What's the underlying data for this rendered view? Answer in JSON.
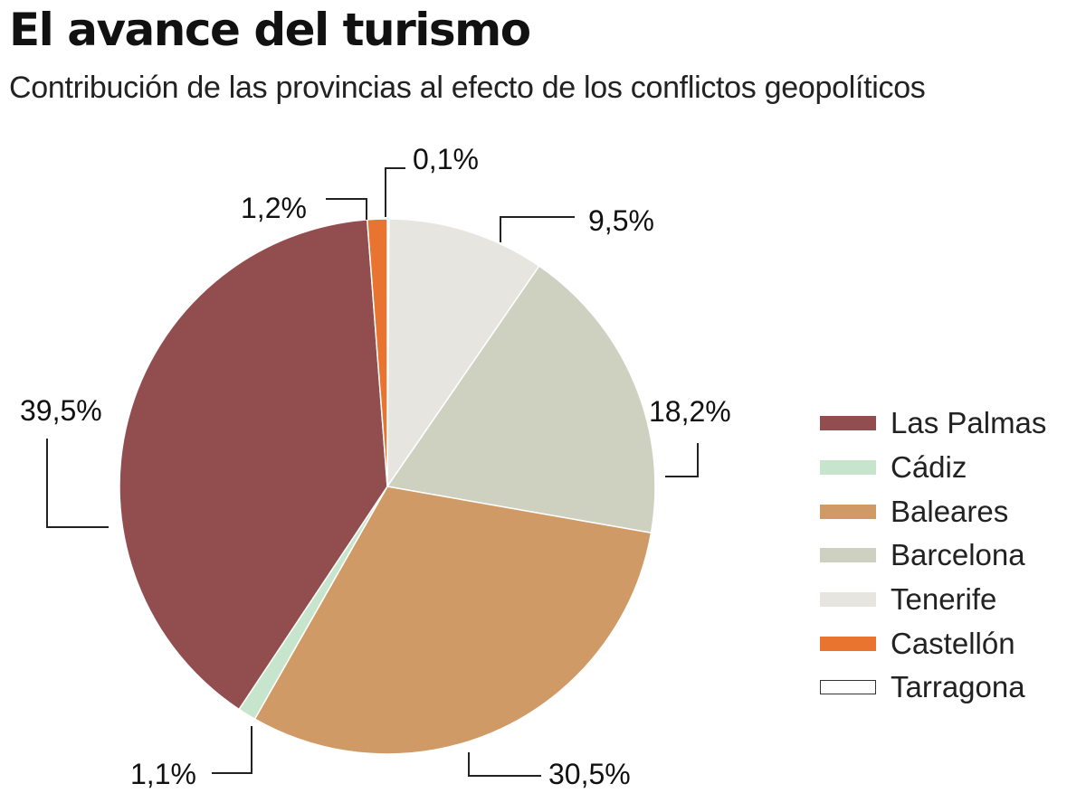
{
  "header": {
    "title": "El avance del turismo",
    "subtitle": "Contribución de las provincias al efecto de los conflictos geopolíticos"
  },
  "chart_data": {
    "type": "pie",
    "start": "top",
    "direction": "clockwise",
    "legend_position": "right",
    "slices": [
      {
        "name": "Tarragona",
        "value": 0.1,
        "label": "0,1%",
        "color": "#ffffff",
        "stroke": "#333333"
      },
      {
        "name": "Tenerife",
        "value": 9.5,
        "label": "9,5%",
        "color": "#e6e5df"
      },
      {
        "name": "Barcelona",
        "value": 18.2,
        "label": "18,2%",
        "color": "#cfd1c0"
      },
      {
        "name": "Baleares",
        "value": 30.5,
        "label": "30,5%",
        "color": "#d09a66"
      },
      {
        "name": "Cádiz",
        "value": 1.1,
        "label": "1,1%",
        "color": "#c7e4cc"
      },
      {
        "name": "Las Palmas",
        "value": 39.5,
        "label": "39,5%",
        "color": "#924e4f"
      },
      {
        "name": "Castellón",
        "value": 1.2,
        "label": "1,2%",
        "color": "#e8742f"
      }
    ],
    "legend_order": [
      "Las Palmas",
      "Cádiz",
      "Baleares",
      "Barcelona",
      "Tenerife",
      "Castellón",
      "Tarragona"
    ]
  }
}
